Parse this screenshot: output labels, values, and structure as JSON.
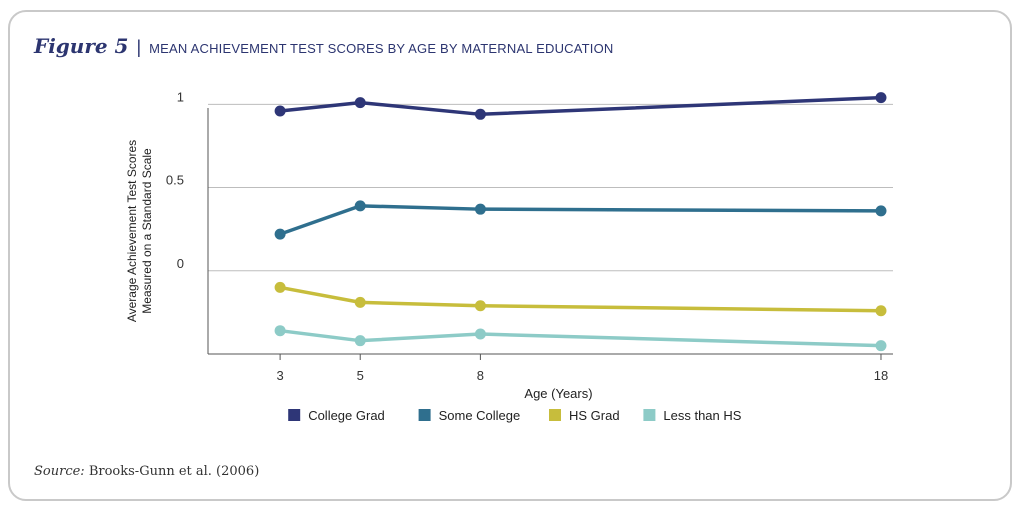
{
  "figure": {
    "label": "Figure 5",
    "title": "MEAN ACHIEVEMENT TEST SCORES BY AGE BY MATERNAL EDUCATION"
  },
  "source": {
    "label": "Source:",
    "text": "Brooks-Gunn et al. (2006)"
  },
  "chart_data": {
    "type": "line",
    "xlabel": "Age (Years)",
    "ylabel_lines": [
      "Average Achievement Test Scores",
      "Measured on a Standard Scale"
    ],
    "x": [
      3,
      5,
      8,
      18
    ],
    "x_tick_labels": [
      "3",
      "5",
      "8",
      "18"
    ],
    "xlim": [
      1.2,
      18.3
    ],
    "y_ticks": [
      1,
      0.5,
      0
    ],
    "y_tick_labels": [
      "1",
      "0.5",
      "0"
    ],
    "ylim": [
      -0.5,
      1.05
    ],
    "grid": "horizontal",
    "legend_position": "bottom",
    "series": [
      {
        "name": "College Grad",
        "color": "#2e3677",
        "values": [
          0.96,
          1.01,
          0.94,
          1.04
        ]
      },
      {
        "name": "Some College",
        "color": "#2f6f8e",
        "values": [
          0.22,
          0.39,
          0.37,
          0.36
        ]
      },
      {
        "name": "HS Grad",
        "color": "#c7bd3c",
        "values": [
          -0.1,
          -0.19,
          -0.21,
          -0.24
        ]
      },
      {
        "name": "Less than HS",
        "color": "#8dcbc7",
        "values": [
          -0.36,
          -0.42,
          -0.38,
          -0.45
        ]
      }
    ]
  }
}
